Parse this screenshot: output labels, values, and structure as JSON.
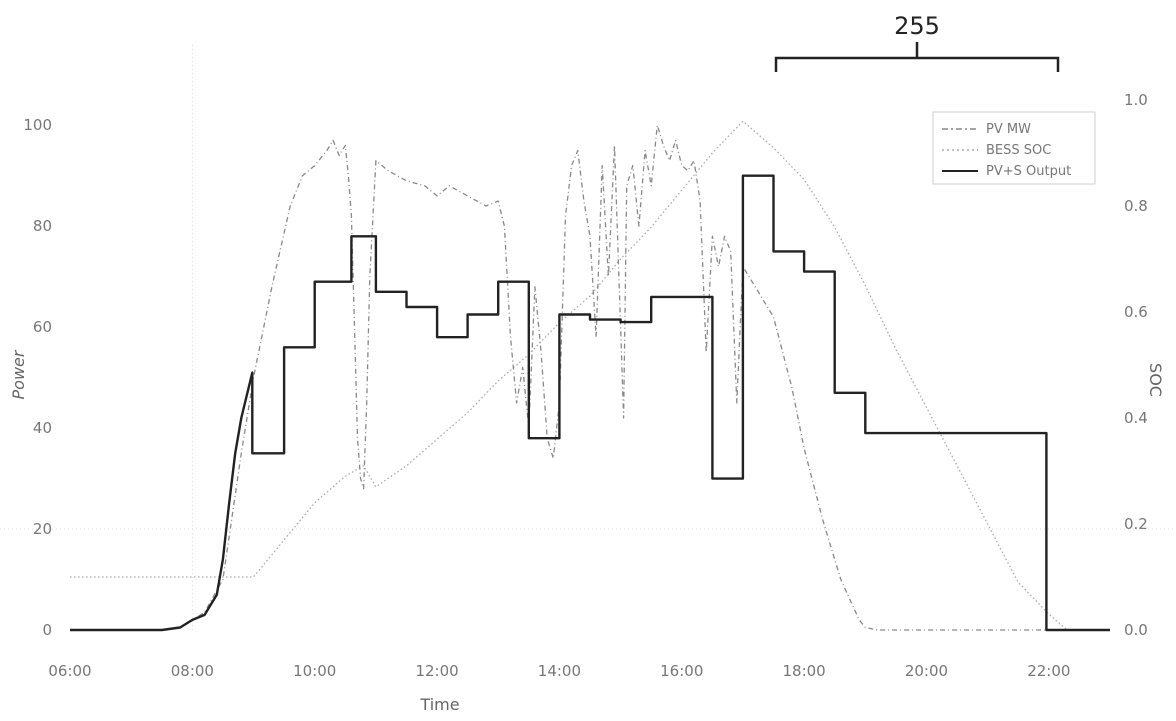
{
  "chart_data": {
    "type": "line",
    "xlabel": "Time",
    "ylabel": "Power",
    "y2label": "SOC",
    "xlim": [
      6,
      23
    ],
    "ylim": [
      0,
      105
    ],
    "y2lim": [
      0,
      1.0
    ],
    "x_ticks": [
      6,
      8,
      10,
      12,
      14,
      16,
      18,
      20,
      22
    ],
    "x_tick_labels": [
      "06:00",
      "08:00",
      "10:00",
      "12:00",
      "14:00",
      "16:00",
      "18:00",
      "20:00",
      "22:00"
    ],
    "y_ticks": [
      0,
      20,
      40,
      60,
      80,
      100
    ],
    "y_tick_labels": [
      "0",
      "20",
      "40",
      "60",
      "80",
      "100"
    ],
    "y2_ticks": [
      0,
      0.2,
      0.4,
      0.6,
      0.8,
      1.0
    ],
    "y2_tick_labels": [
      "0.0",
      "0.2",
      "0.4",
      "0.6",
      "0.8",
      "1.0"
    ],
    "grid": "dotted, partial",
    "legend_position": "top-right",
    "annotation": {
      "label": "255",
      "x_start": 17.5,
      "x_end": 22.0
    },
    "series": [
      {
        "name": "PV MW",
        "axis": "left",
        "style": "dash-dot",
        "color": "#888888",
        "x": [
          6.0,
          7.5,
          7.8,
          8.0,
          8.2,
          8.5,
          8.8,
          9.0,
          9.3,
          9.6,
          9.8,
          10.0,
          10.2,
          10.3,
          10.4,
          10.5,
          10.55,
          10.6,
          10.65,
          10.7,
          10.75,
          10.8,
          10.85,
          10.9,
          11.0,
          11.2,
          11.5,
          11.8,
          12.0,
          12.2,
          12.5,
          12.8,
          13.0,
          13.1,
          13.2,
          13.3,
          13.4,
          13.5,
          13.6,
          13.7,
          13.8,
          13.9,
          14.0,
          14.1,
          14.2,
          14.3,
          14.4,
          14.5,
          14.6,
          14.7,
          14.8,
          14.9,
          15.0,
          15.05,
          15.1,
          15.2,
          15.3,
          15.4,
          15.5,
          15.6,
          15.7,
          15.8,
          15.9,
          16.0,
          16.1,
          16.2,
          16.3,
          16.4,
          16.5,
          16.6,
          16.7,
          16.8,
          16.9,
          17.0,
          17.2,
          17.5,
          17.8,
          18.0,
          18.3,
          18.6,
          18.9,
          19.0,
          19.2,
          20.0,
          21.0,
          22.0,
          22.5,
          23.0
        ],
        "values": [
          0.0,
          0.0,
          0.5,
          2.0,
          3.5,
          10.0,
          35.0,
          50.0,
          68.0,
          84.0,
          90.0,
          92.0,
          95.0,
          97.0,
          94.0,
          96.0,
          90.0,
          82.0,
          60.0,
          38.0,
          30.0,
          28.0,
          45.0,
          70.0,
          93.0,
          91.0,
          89.0,
          88.0,
          86.0,
          88.0,
          86.0,
          84.0,
          85.0,
          80.0,
          58.0,
          45.0,
          52.0,
          40.0,
          68.0,
          55.0,
          38.0,
          34.0,
          45.0,
          82.0,
          92.0,
          95.0,
          85.0,
          78.0,
          58.0,
          92.0,
          70.0,
          96.0,
          60.0,
          42.0,
          88.0,
          92.0,
          80.0,
          95.0,
          88.0,
          100.0,
          96.0,
          93.0,
          97.0,
          92.0,
          91.0,
          93.0,
          85.0,
          55.0,
          78.0,
          72.0,
          78.0,
          75.0,
          45.0,
          72.0,
          68.0,
          62.0,
          48.0,
          36.0,
          22.0,
          10.0,
          2.0,
          0.5,
          0.0,
          0.0,
          0.0,
          0.0,
          0.0,
          0.0
        ]
      },
      {
        "name": "BESS SOC",
        "axis": "right",
        "style": "dotted",
        "color": "#aaaaaa",
        "x": [
          6.0,
          8.0,
          9.0,
          9.5,
          10.0,
          10.5,
          10.8,
          11.0,
          11.5,
          12.0,
          12.5,
          13.0,
          13.5,
          14.0,
          14.5,
          15.0,
          15.5,
          16.0,
          16.5,
          17.0,
          17.5,
          18.0,
          18.5,
          19.0,
          19.5,
          20.0,
          20.5,
          21.0,
          21.5,
          22.0,
          22.3,
          23.0
        ],
        "values": [
          0.1,
          0.1,
          0.1,
          0.17,
          0.24,
          0.29,
          0.31,
          0.27,
          0.31,
          0.36,
          0.41,
          0.47,
          0.52,
          0.58,
          0.63,
          0.7,
          0.76,
          0.83,
          0.9,
          0.96,
          0.91,
          0.85,
          0.76,
          0.65,
          0.53,
          0.42,
          0.31,
          0.2,
          0.09,
          0.03,
          0.0,
          0.0
        ]
      },
      {
        "name": "PV+S Output",
        "axis": "left",
        "style": "step",
        "color": "#222222",
        "x": [
          6.0,
          7.5,
          7.8,
          8.0,
          8.2,
          8.3,
          8.4,
          8.5,
          8.6,
          8.7,
          8.8,
          8.98,
          8.98,
          9.5,
          9.5,
          10.0,
          10.0,
          10.6,
          10.6,
          11.0,
          11.0,
          11.5,
          11.5,
          12.0,
          12.0,
          12.5,
          12.5,
          13.0,
          13.0,
          13.5,
          13.5,
          14.0,
          14.0,
          14.5,
          14.5,
          15.0,
          15.0,
          15.5,
          15.5,
          16.0,
          16.0,
          16.5,
          16.5,
          17.0,
          17.0,
          17.5,
          17.5,
          18.0,
          18.0,
          18.5,
          18.5,
          19.0,
          19.0,
          21.96,
          21.96,
          23.0
        ],
        "values": [
          0.0,
          0.0,
          0.5,
          2.0,
          3.0,
          5.0,
          7.0,
          14.0,
          25.0,
          35.0,
          42.0,
          51.0,
          35.0,
          35.0,
          56.0,
          56.0,
          69.0,
          69.0,
          78.0,
          78.0,
          67.0,
          67.0,
          64.0,
          64.0,
          58.0,
          58.0,
          62.5,
          62.5,
          69.0,
          69.0,
          38.0,
          38.0,
          62.5,
          62.5,
          61.5,
          61.5,
          61.0,
          61.0,
          66.0,
          66.0,
          66.0,
          66.0,
          30.0,
          30.0,
          90.0,
          90.0,
          75.0,
          75.0,
          71.0,
          71.0,
          47.0,
          47.0,
          39.0,
          39.0,
          0.0,
          0.0
        ]
      }
    ]
  }
}
